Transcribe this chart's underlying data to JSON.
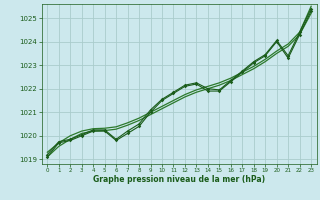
{
  "background_color": "#cce8ed",
  "plot_bg_color": "#cce8ed",
  "grid_color": "#aacccc",
  "line_color_dark": "#1a5c1a",
  "line_color_mid": "#2d7a2d",
  "xlabel": "Graphe pression niveau de la mer (hPa)",
  "ylim": [
    1018.8,
    1025.6
  ],
  "xlim": [
    -0.5,
    23.5
  ],
  "yticks": [
    1019,
    1020,
    1021,
    1022,
    1023,
    1024,
    1025
  ],
  "xticks": [
    0,
    1,
    2,
    3,
    4,
    5,
    6,
    7,
    8,
    9,
    10,
    11,
    12,
    13,
    14,
    15,
    16,
    17,
    18,
    19,
    20,
    21,
    22,
    23
  ],
  "series_marker1": [
    1019.1,
    1019.7,
    1019.8,
    1020.0,
    1020.2,
    1020.2,
    1019.8,
    1020.1,
    1020.4,
    1021.0,
    1021.5,
    1021.8,
    1022.1,
    1022.2,
    1021.9,
    1021.9,
    1022.3,
    1022.7,
    1023.1,
    1023.4,
    1024.0,
    1023.3,
    1024.3,
    1025.3
  ],
  "series_marker2": [
    1019.2,
    1019.75,
    1019.85,
    1020.05,
    1020.25,
    1020.25,
    1019.85,
    1020.2,
    1020.5,
    1021.1,
    1021.55,
    1021.85,
    1022.15,
    1022.25,
    1022.0,
    1021.95,
    1022.35,
    1022.75,
    1023.15,
    1023.45,
    1024.05,
    1023.4,
    1024.4,
    1025.4
  ],
  "series_smooth1": [
    1019.1,
    1019.55,
    1019.85,
    1020.1,
    1020.2,
    1020.22,
    1020.28,
    1020.45,
    1020.65,
    1020.9,
    1021.15,
    1021.4,
    1021.65,
    1021.85,
    1022.0,
    1022.15,
    1022.35,
    1022.6,
    1022.85,
    1023.15,
    1023.5,
    1023.8,
    1024.3,
    1025.2
  ],
  "series_smooth2": [
    1019.3,
    1019.7,
    1020.0,
    1020.2,
    1020.3,
    1020.32,
    1020.38,
    1020.55,
    1020.75,
    1021.0,
    1021.25,
    1021.5,
    1021.75,
    1021.95,
    1022.1,
    1022.25,
    1022.45,
    1022.7,
    1022.95,
    1023.25,
    1023.6,
    1023.9,
    1024.4,
    1025.5
  ]
}
